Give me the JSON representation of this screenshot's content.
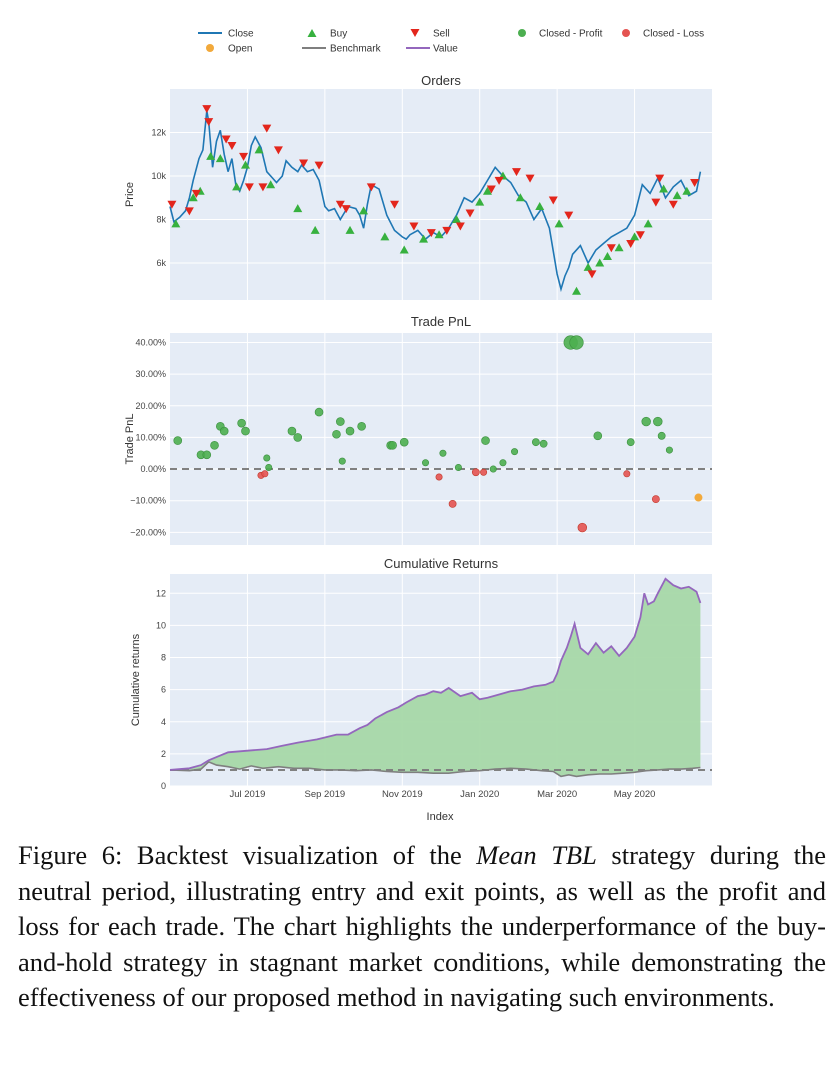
{
  "colors": {
    "close": "#1f77b4",
    "buy": "#37b13f",
    "sell": "#e3261c",
    "profit": "#4caf50",
    "loss": "#e45351",
    "open": "#f2a93b",
    "benchmark": "#7f7f7f",
    "value": "#9467bd",
    "fill": "#a6d8a8",
    "plot_bg": "#e5ecf6",
    "grid": "#ffffff",
    "zero_line": "#808080"
  },
  "legend": {
    "close": "Close",
    "buy": "Buy",
    "sell": "Sell",
    "closed_profit": "Closed - Profit",
    "closed_loss": "Closed - Loss",
    "open": "Open",
    "benchmark": "Benchmark",
    "value": "Value"
  },
  "x_ticks": [
    "Jul 2019",
    "Sep 2019",
    "Nov 2019",
    "Jan 2020",
    "Mar 2020",
    "May 2020"
  ],
  "x_label": "Index",
  "caption": {
    "prefix": "Figure 6: Backtest visualization of the ",
    "strategy": "Mean TBL",
    "suffix": " strategy during the neutral period, illustrating entry and exit points, as well as the profit and loss for each trade. The chart highlights the underperformance of the buy-and-hold strategy in stagnant market conditions, while demonstrating the effectiveness of our proposed method in navigating such environments."
  },
  "chart_data": [
    {
      "type": "line",
      "title": "Orders",
      "ylabel": "Price",
      "ylim": [
        4300,
        14000
      ],
      "yticks": [
        6000,
        8000,
        10000,
        12000
      ],
      "ytick_labels": [
        "6k",
        "8k",
        "10k",
        "12k"
      ],
      "xlim": [
        0,
        14
      ],
      "series_close": {
        "name": "Close",
        "x": [
          0,
          0.1,
          0.25,
          0.4,
          0.5,
          0.6,
          0.75,
          0.85,
          0.95,
          1.0,
          1.1,
          1.2,
          1.3,
          1.4,
          1.5,
          1.6,
          1.7,
          1.8,
          1.9,
          2.0,
          2.1,
          2.2,
          2.35,
          2.5,
          2.6,
          2.75,
          2.9,
          3.0,
          3.15,
          3.3,
          3.4,
          3.55,
          3.7,
          3.85,
          4.0,
          4.1,
          4.25,
          4.4,
          4.6,
          4.8,
          4.9,
          5.0,
          5.1,
          5.2,
          5.4,
          5.6,
          5.8,
          6.0,
          6.1,
          6.2,
          6.4,
          6.6,
          6.8,
          7.0,
          7.2,
          7.4,
          7.6,
          7.8,
          8.0,
          8.2,
          8.4,
          8.6,
          8.8,
          9.0,
          9.2,
          9.4,
          9.6,
          9.8,
          10.0,
          10.1,
          10.2,
          10.3,
          10.4,
          10.6,
          10.8,
          11.0,
          11.2,
          11.4,
          11.6,
          11.8,
          12.0,
          12.2,
          12.4,
          12.6,
          12.8,
          13.0,
          13.2,
          13.4,
          13.6,
          13.7
        ],
        "y": [
          8600,
          7900,
          8100,
          8400,
          9000,
          9800,
          10800,
          11200,
          13000,
          12500,
          10400,
          11600,
          12100,
          11000,
          10200,
          10800,
          9600,
          9300,
          9800,
          10400,
          11400,
          11800,
          11300,
          10200,
          10000,
          9700,
          10000,
          10700,
          10400,
          10200,
          10500,
          10200,
          10300,
          9800,
          8600,
          8400,
          8500,
          8000,
          8600,
          8500,
          8200,
          7600,
          8700,
          9600,
          9400,
          8200,
          7500,
          7200,
          7100,
          7300,
          7500,
          7100,
          7400,
          7200,
          7600,
          8200,
          9000,
          8800,
          9200,
          9800,
          10400,
          10000,
          9700,
          9100,
          8800,
          8000,
          8500,
          7600,
          5500,
          4800,
          5400,
          5800,
          6400,
          6800,
          6000,
          6600,
          6900,
          7200,
          7400,
          7600,
          8200,
          9600,
          9200,
          9900,
          9000,
          9500,
          9800,
          9100,
          9300,
          10200
        ]
      },
      "buy_markers": {
        "x": [
          0.15,
          0.6,
          0.78,
          1.05,
          1.3,
          1.72,
          1.95,
          2.3,
          2.6,
          3.3,
          3.75,
          4.65,
          5.0,
          5.55,
          6.05,
          6.55,
          6.95,
          7.4,
          8.0,
          8.2,
          8.6,
          9.05,
          9.55,
          10.05,
          10.5,
          10.8,
          11.1,
          11.3,
          11.6,
          12.0,
          12.35,
          12.75,
          13.1,
          13.35
        ],
        "y": [
          7800,
          9000,
          9300,
          10900,
          10800,
          9500,
          10500,
          11200,
          9600,
          8500,
          7500,
          7500,
          8400,
          7200,
          6600,
          7100,
          7300,
          8000,
          8800,
          9300,
          10000,
          9000,
          8600,
          7800,
          4700,
          5800,
          6000,
          6300,
          6700,
          7200,
          7800,
          9400,
          9100,
          9300
        ]
      },
      "sell_markers": {
        "x": [
          0.05,
          0.5,
          0.68,
          0.95,
          1.0,
          1.45,
          1.6,
          1.9,
          2.05,
          2.4,
          2.5,
          2.8,
          3.45,
          3.85,
          4.4,
          4.55,
          5.2,
          5.8,
          6.3,
          6.75,
          7.15,
          7.5,
          7.75,
          8.3,
          8.5,
          8.95,
          9.3,
          9.9,
          10.3,
          10.9,
          11.4,
          11.9,
          12.15,
          12.55,
          12.65,
          13.0,
          13.55
        ],
        "y": [
          8700,
          8400,
          9200,
          13100,
          12500,
          11700,
          11400,
          10900,
          9500,
          9500,
          12200,
          11200,
          10600,
          10500,
          8700,
          8500,
          9500,
          8700,
          7700,
          7400,
          7500,
          7700,
          8300,
          9400,
          9800,
          10200,
          9900,
          8900,
          8200,
          5500,
          6700,
          6900,
          7300,
          8800,
          9900,
          8700,
          9700
        ]
      }
    },
    {
      "type": "scatter",
      "title": "Trade PnL",
      "ylabel": "Trade PnL",
      "ylim": [
        -0.24,
        0.43
      ],
      "yticks": [
        -0.2,
        -0.1,
        0,
        0.1,
        0.2,
        0.3,
        0.4
      ],
      "ytick_labels": [
        "−20.00%",
        "−10.00%",
        "0.00%",
        "10.00%",
        "20.00%",
        "30.00%",
        "40.00%"
      ],
      "xlim": [
        0,
        14
      ],
      "closed_profit": {
        "x": [
          0.2,
          0.8,
          0.95,
          1.15,
          1.3,
          1.4,
          1.85,
          1.95,
          2.5,
          2.55,
          3.15,
          3.3,
          3.85,
          4.3,
          4.4,
          4.45,
          4.65,
          4.95,
          5.7,
          5.75,
          6.05,
          6.6,
          7.05,
          7.45,
          8.15,
          8.35,
          8.6,
          8.9,
          9.45,
          9.65,
          10.35,
          10.5,
          11.05,
          11.9,
          12.3,
          12.6,
          12.7,
          12.9
        ],
        "y": [
          0.09,
          0.045,
          0.045,
          0.075,
          0.135,
          0.12,
          0.145,
          0.12,
          0.035,
          0.005,
          0.12,
          0.1,
          0.18,
          0.11,
          0.15,
          0.025,
          0.12,
          0.135,
          0.075,
          0.075,
          0.085,
          0.02,
          0.05,
          0.005,
          0.09,
          0.0,
          0.02,
          0.055,
          0.085,
          0.08,
          0.4,
          0.4,
          0.105,
          0.085,
          0.15,
          0.15,
          0.105,
          0.06
        ],
        "size": [
          1,
          1,
          1,
          1,
          1,
          1,
          1,
          1,
          0.8,
          0.8,
          1,
          1,
          1,
          1,
          1,
          0.8,
          1,
          1,
          1,
          1,
          1,
          0.8,
          0.8,
          0.8,
          1,
          0.8,
          0.8,
          0.8,
          0.9,
          0.9,
          1.7,
          1.7,
          1,
          0.9,
          1.1,
          1.1,
          0.9,
          0.8
        ]
      },
      "closed_loss": {
        "x": [
          2.35,
          2.45,
          6.95,
          7.3,
          7.9,
          8.1,
          10.65,
          11.8,
          12.55
        ],
        "y": [
          -0.02,
          -0.015,
          -0.025,
          -0.11,
          -0.01,
          -0.01,
          -0.185,
          -0.015,
          -0.095
        ],
        "size": [
          0.8,
          0.8,
          0.8,
          0.9,
          0.9,
          0.8,
          1.1,
          0.8,
          0.9
        ]
      },
      "open": {
        "x": [
          13.65
        ],
        "y": [
          -0.09
        ]
      }
    },
    {
      "type": "area",
      "title": "Cumulative Returns",
      "ylabel": "Cumulative returns",
      "ylim": [
        0,
        13.2
      ],
      "yticks": [
        0,
        2,
        4,
        6,
        8,
        10,
        12
      ],
      "ytick_labels": [
        "0",
        "2",
        "4",
        "6",
        "8",
        "10",
        "12"
      ],
      "reference_line": 1,
      "xlim": [
        0,
        14
      ],
      "value": {
        "name": "Value",
        "x": [
          0,
          0.5,
          0.8,
          1.0,
          1.2,
          1.5,
          2.0,
          2.5,
          2.9,
          3.3,
          3.8,
          4.3,
          4.6,
          4.9,
          5.1,
          5.3,
          5.6,
          5.9,
          6.1,
          6.4,
          6.6,
          6.8,
          7.0,
          7.2,
          7.5,
          7.8,
          8.0,
          8.2,
          8.5,
          8.8,
          9.1,
          9.4,
          9.7,
          9.9,
          10.0,
          10.1,
          10.25,
          10.35,
          10.45,
          10.6,
          10.8,
          11.0,
          11.2,
          11.4,
          11.6,
          11.8,
          12.0,
          12.15,
          12.25,
          12.35,
          12.5,
          12.6,
          12.8,
          13.0,
          13.2,
          13.4,
          13.6,
          13.7
        ],
        "y": [
          1.0,
          1.1,
          1.3,
          1.6,
          1.8,
          2.1,
          2.2,
          2.3,
          2.5,
          2.7,
          2.9,
          3.2,
          3.2,
          3.6,
          3.8,
          4.2,
          4.6,
          4.9,
          5.2,
          5.6,
          5.7,
          5.9,
          5.8,
          6.1,
          5.6,
          5.8,
          5.4,
          5.5,
          5.7,
          5.9,
          6.0,
          6.2,
          6.3,
          6.5,
          7.0,
          7.8,
          8.6,
          9.3,
          10.1,
          8.6,
          8.2,
          8.9,
          8.3,
          8.7,
          8.1,
          8.6,
          9.3,
          10.5,
          12.0,
          11.3,
          11.5,
          12.0,
          12.9,
          12.5,
          12.3,
          12.4,
          12.1,
          11.4
        ]
      },
      "benchmark": {
        "name": "Benchmark",
        "x": [
          0,
          0.5,
          0.8,
          1.0,
          1.2,
          1.5,
          1.8,
          2.1,
          2.4,
          2.8,
          3.2,
          3.6,
          4.0,
          4.4,
          4.8,
          5.2,
          5.6,
          6.0,
          6.4,
          6.8,
          7.2,
          7.6,
          8.0,
          8.4,
          8.8,
          9.2,
          9.6,
          9.9,
          10.1,
          10.3,
          10.5,
          10.8,
          11.1,
          11.4,
          11.7,
          12.0,
          12.3,
          12.6,
          12.9,
          13.2,
          13.5,
          13.7
        ],
        "y": [
          1.0,
          0.95,
          1.05,
          1.5,
          1.3,
          1.2,
          1.05,
          1.25,
          1.1,
          1.2,
          1.1,
          1.1,
          1.0,
          1.0,
          0.95,
          1.0,
          0.9,
          0.85,
          0.85,
          0.8,
          0.8,
          0.9,
          0.95,
          1.05,
          1.1,
          1.05,
          0.95,
          0.9,
          0.6,
          0.7,
          0.6,
          0.7,
          0.75,
          0.75,
          0.8,
          0.85,
          0.95,
          1.0,
          1.05,
          1.05,
          1.1,
          1.15
        ]
      }
    }
  ]
}
